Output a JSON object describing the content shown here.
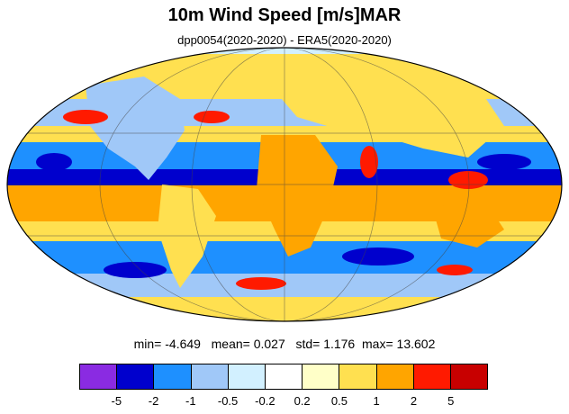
{
  "title": "10m Wind Speed [m/s]MAR",
  "subtitle": "dpp0054(2020-2020) - ERA5(2020-2020)",
  "stats": {
    "min_label": "min=",
    "min": "-4.649",
    "mean_label": "mean=",
    "mean": "0.027",
    "std_label": "std=",
    "std": "1.176",
    "max_label": "max=",
    "max": "13.602"
  },
  "colorbar": {
    "colors": [
      "#8a2be2",
      "#0000cd",
      "#1e90ff",
      "#a0c8f8",
      "#d2f0ff",
      "#ffffff",
      "#ffffc8",
      "#ffe050",
      "#ffa500",
      "#ff1a00",
      "#c80000"
    ],
    "labels": [
      "-5",
      "-2",
      "-1",
      "-0.5",
      "-0.2",
      "0.2",
      "0.5",
      "1",
      "2",
      "5"
    ]
  },
  "map": {
    "projection": "mollweide",
    "grid": true,
    "palette": {
      "ocean_blue": "#1e90ff",
      "ocean_deep": "#0000cd",
      "ocean_light": "#a0c8f8",
      "land_orange": "#ffe050",
      "land_dark": "#ffa500",
      "hot_red": "#ff1a00"
    }
  }
}
